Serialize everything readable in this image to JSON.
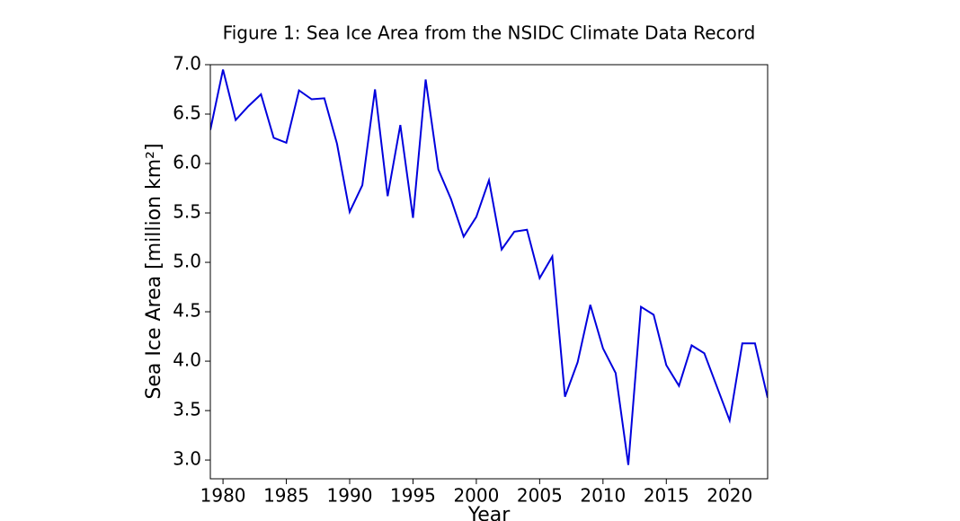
{
  "chart_data": {
    "type": "line",
    "title": "Figure 1: Sea Ice Area from the NSIDC Climate Data Record",
    "x_label": "Year",
    "y_label": "Sea Ice Area [million km²]",
    "x": [
      1979,
      1980,
      1981,
      1982,
      1983,
      1984,
      1985,
      1986,
      1987,
      1988,
      1989,
      1990,
      1991,
      1992,
      1993,
      1994,
      1995,
      1996,
      1997,
      1998,
      1999,
      2000,
      2001,
      2002,
      2003,
      2004,
      2005,
      2006,
      2007,
      2008,
      2009,
      2010,
      2011,
      2012,
      2013,
      2014,
      2015,
      2016,
      2017,
      2018,
      2019,
      2020,
      2021,
      2022,
      2023
    ],
    "series": [
      {
        "name": "Sea Ice Area",
        "color": "#0000dd",
        "values": [
          6.34,
          6.95,
          6.44,
          6.58,
          6.7,
          6.26,
          6.21,
          6.74,
          6.65,
          6.66,
          6.2,
          5.51,
          5.78,
          6.75,
          5.67,
          6.39,
          5.45,
          6.85,
          5.94,
          5.64,
          5.26,
          5.46,
          5.83,
          5.13,
          5.31,
          5.33,
          4.84,
          5.06,
          3.64,
          3.99,
          4.57,
          4.13,
          3.88,
          2.95,
          4.55,
          4.47,
          3.96,
          3.75,
          4.16,
          4.08,
          3.74,
          3.4,
          4.18,
          4.18,
          3.63
        ]
      }
    ],
    "xlim": [
      1979,
      2023
    ],
    "ylim": [
      2.81,
      7.0
    ],
    "xticks": [
      1980,
      1985,
      1990,
      1995,
      2000,
      2005,
      2010,
      2015,
      2020
    ],
    "yticks": [
      {
        "value": 3,
        "label": "3.0"
      },
      3.5,
      {
        "value": 4,
        "label": "4.0"
      },
      4.5,
      {
        "value": 5,
        "label": "5.0"
      },
      5.5,
      {
        "value": 6,
        "label": "6.0"
      },
      6.5,
      {
        "value": 7,
        "label": "7.0"
      }
    ]
  }
}
